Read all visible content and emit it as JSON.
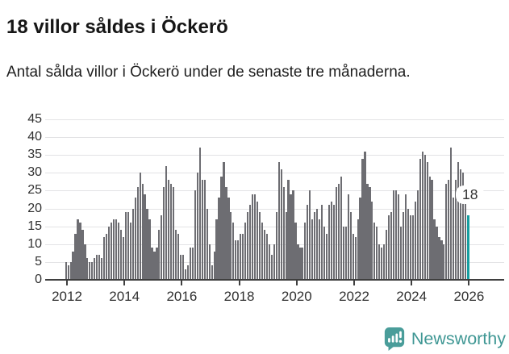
{
  "header": {
    "title": "18 villor såldes i Öckerö",
    "subtitle": "Antal sålda villor i Öckerö under de senaste tre månaderna."
  },
  "chart_data": {
    "type": "bar",
    "title": "18 villor såldes i Öckerö",
    "ylabel": "",
    "xlabel": "",
    "ylim": [
      0,
      45
    ],
    "grid": true,
    "period": "monthly (rolling 3-month sales counts)",
    "x_start": "2012-01",
    "x_end": "2026-01",
    "x_tick_labels": [
      "2012",
      "2014",
      "2016",
      "2018",
      "2020",
      "2022",
      "2024",
      "2026"
    ],
    "y_ticks": [
      0,
      5,
      10,
      15,
      20,
      25,
      30,
      35,
      40,
      45
    ],
    "values": [
      5,
      4,
      5,
      8,
      13,
      17,
      16,
      14,
      10,
      6,
      5,
      5,
      6,
      7,
      7,
      6,
      12,
      13,
      15,
      16,
      17,
      17,
      16,
      14,
      12,
      19,
      19,
      16,
      20,
      23,
      26,
      30,
      27,
      24,
      20,
      17,
      9,
      8,
      9,
      14,
      18,
      26,
      32,
      28,
      27,
      26,
      14,
      13,
      7,
      7,
      3,
      4,
      9,
      9,
      25,
      30,
      37,
      28,
      28,
      20,
      10,
      4,
      8,
      17,
      23,
      29,
      33,
      26,
      23,
      19,
      16,
      11,
      11,
      13,
      13,
      16,
      19,
      21,
      24,
      24,
      22,
      19,
      16,
      14,
      13,
      10,
      7,
      10,
      19,
      33,
      31,
      26,
      19,
      28,
      24,
      25,
      16,
      10,
      9,
      9,
      16,
      21,
      25,
      17,
      19,
      20,
      17,
      21,
      15,
      13,
      21,
      22,
      21,
      26,
      27,
      29,
      15,
      15,
      24,
      19,
      13,
      12,
      17,
      23,
      34,
      36,
      27,
      26,
      22,
      16,
      15,
      10,
      9,
      10,
      14,
      18,
      19,
      25,
      25,
      24,
      15,
      19,
      24,
      20,
      18,
      18,
      22,
      25,
      34,
      36,
      35,
      33,
      29,
      28,
      17,
      15,
      12,
      11,
      10,
      27,
      28,
      37,
      23,
      28,
      33,
      31,
      30,
      25,
      18
    ],
    "highlight": {
      "index": 168,
      "value": 18,
      "label": "18"
    },
    "colors": {
      "bar": "#6d6d72",
      "highlight": "#169ea0",
      "gridline": "#e3e3e5",
      "axis": "#3f3f3f"
    },
    "legend": null
  },
  "footer": {
    "brand": "Newsworthy",
    "brand_color": "#3f9794",
    "logo_color": "#4a9d9a"
  }
}
